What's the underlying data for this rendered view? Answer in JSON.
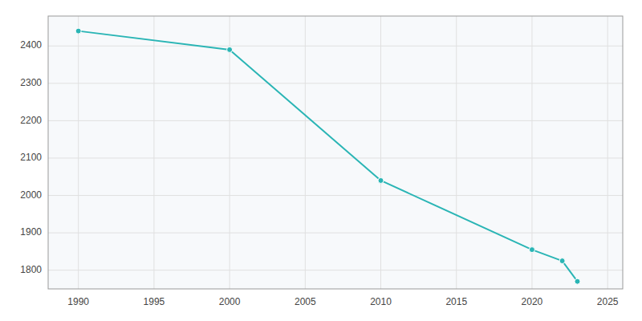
{
  "chart_data": {
    "type": "line",
    "x": [
      1990,
      2000,
      2010,
      2020,
      2022,
      2023
    ],
    "values": [
      2440,
      2390,
      2040,
      1855,
      1825,
      1770
    ],
    "color": "#2ab5b5",
    "marker": "circle",
    "xlim": [
      1988,
      2026
    ],
    "ylim": [
      1750,
      2480
    ],
    "xticks": [
      1990,
      1995,
      2000,
      2005,
      2010,
      2015,
      2020,
      2025
    ],
    "yticks": [
      1800,
      1900,
      2000,
      2100,
      2200,
      2300,
      2400
    ],
    "grid": true
  }
}
